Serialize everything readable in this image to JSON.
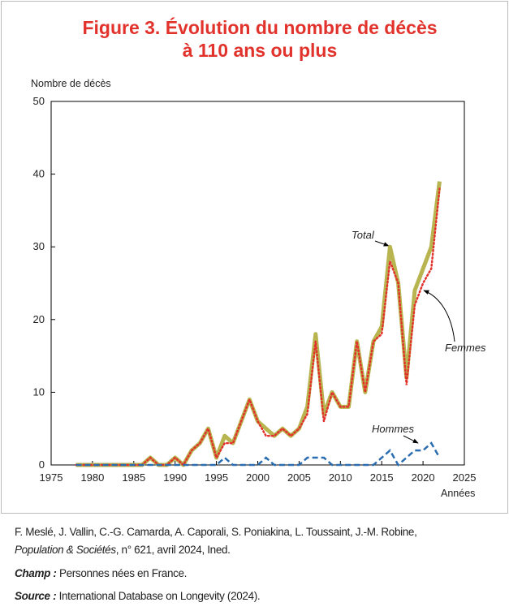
{
  "chart_data": {
    "type": "line",
    "title": [
      "Figure 3. Évolution du nombre de décès",
      "à 110 ans ou plus"
    ],
    "y_label": "Nombre de décès",
    "x_label": "Années",
    "x": [
      1978,
      1979,
      1980,
      1981,
      1982,
      1983,
      1984,
      1985,
      1986,
      1987,
      1988,
      1989,
      1990,
      1991,
      1992,
      1993,
      1994,
      1995,
      1996,
      1997,
      1998,
      1999,
      2000,
      2001,
      2002,
      2003,
      2004,
      2005,
      2006,
      2007,
      2008,
      2009,
      2010,
      2011,
      2012,
      2013,
      2014,
      2015,
      2016,
      2017,
      2018,
      2019,
      2020,
      2021,
      2022
    ],
    "series": [
      {
        "name": "Total",
        "color": "#b8b550",
        "values": [
          0,
          0,
          0,
          0,
          0,
          0,
          0,
          0,
          0,
          1,
          0,
          0,
          1,
          0,
          2,
          3,
          5,
          1,
          4,
          3,
          6,
          9,
          6,
          5,
          4,
          5,
          4,
          5,
          8,
          18,
          7,
          10,
          8,
          8,
          17,
          10,
          17,
          19,
          30,
          25,
          12,
          24,
          27,
          30,
          39
        ]
      },
      {
        "name": "Femmes",
        "color": "#e2322c",
        "values": [
          0,
          0,
          0,
          0,
          0,
          0,
          0,
          0,
          0,
          1,
          0,
          0,
          1,
          0,
          2,
          3,
          5,
          1,
          3,
          3,
          6,
          9,
          6,
          4,
          4,
          5,
          4,
          5,
          7,
          17,
          6,
          10,
          8,
          8,
          17,
          10,
          17,
          18,
          28,
          25,
          11,
          22,
          25,
          27,
          38
        ]
      },
      {
        "name": "Hommes",
        "color": "#2a6db0",
        "values": [
          0,
          0,
          0,
          0,
          0,
          0,
          0,
          0,
          0,
          0,
          0,
          0,
          0,
          0,
          0,
          0,
          0,
          0,
          1,
          0,
          0,
          0,
          0,
          1,
          0,
          0,
          0,
          0,
          1,
          1,
          1,
          0,
          0,
          0,
          0,
          0,
          0,
          1,
          2,
          0,
          1,
          2,
          2,
          3,
          1
        ]
      }
    ],
    "xlim": [
      1975,
      2025
    ],
    "xticks": [
      1975,
      1980,
      1985,
      1990,
      1995,
      2000,
      2005,
      2010,
      2015,
      2020,
      2025
    ],
    "ylim": [
      0,
      50
    ],
    "yticks": [
      0,
      10,
      20,
      30,
      40,
      50
    ]
  },
  "footer": {
    "authors": "F. Meslé, J. Vallin, C.-G. Camarda, A. Caporali, S. Poniakina, L. Toussaint, J.-M. Robine,",
    "journal": "Population & Sociétés",
    "issue": ", n° 621, avril 2024, Ined.",
    "champ_label": "Champ :",
    "champ": " Personnes nées en France.",
    "source_label": "Source :",
    "source": " International Database on Longevity (2024)."
  }
}
